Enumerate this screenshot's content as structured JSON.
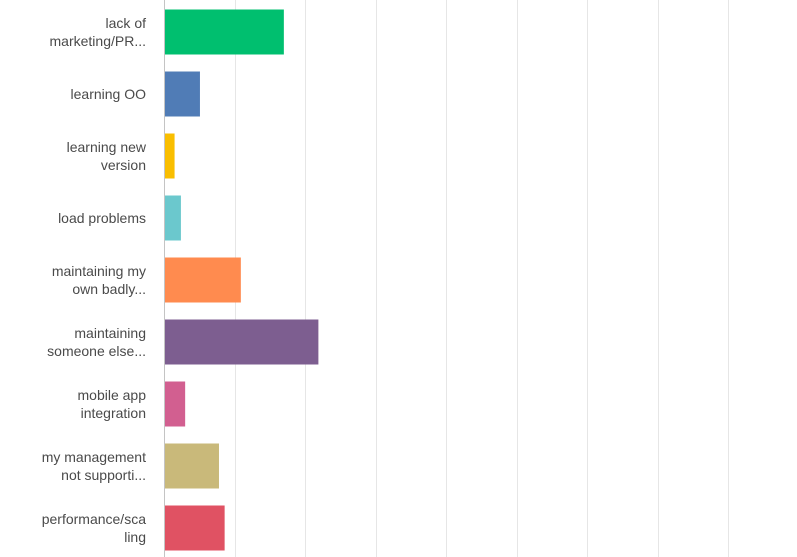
{
  "chart_data": {
    "type": "bar",
    "orientation": "horizontal",
    "title": "",
    "xlabel": "",
    "ylabel": "",
    "grid": true,
    "xlim": [
      0,
      100
    ],
    "categories": [
      [
        "lack of",
        "marketing/PR..."
      ],
      [
        "learning OO"
      ],
      [
        "learning new",
        "version"
      ],
      [
        "load problems"
      ],
      [
        "maintaining my",
        "own badly..."
      ],
      [
        "maintaining",
        "someone else..."
      ],
      [
        "mobile app",
        "integration"
      ],
      [
        "my management",
        "not supporti..."
      ],
      [
        "performance/sca",
        "ling"
      ]
    ],
    "values": [
      17,
      5.1,
      1.5,
      2.4,
      10.9,
      21.9,
      3,
      7.8,
      8.6
    ],
    "colors": [
      "#00bf6f",
      "#507cb6",
      "#f9be00",
      "#6bc8cd",
      "#ff8b4f",
      "#7d5e90",
      "#d25f90",
      "#c9b97a",
      "#e05263"
    ]
  }
}
